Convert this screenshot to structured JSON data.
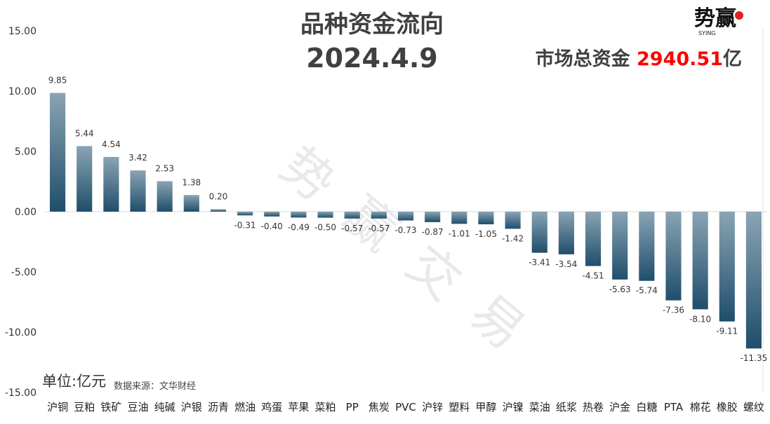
{
  "title": "品种资金流向",
  "date": "2024.4.9",
  "total": {
    "label": "市场总资金",
    "value": "2940.51",
    "unit": "亿"
  },
  "unit_label": "单位:亿元",
  "source_label": "数据来源：文华财经",
  "watermark": "势赢交易",
  "logo": {
    "text": "势赢",
    "sub": "SYING"
  },
  "colors": {
    "bar_light": "#8aa4b4",
    "bar_dark": "#1f4e6b",
    "total_value": "#ff0000",
    "title": "#404040"
  },
  "chart_data": {
    "type": "bar",
    "categories": [
      "沪铜",
      "豆粕",
      "铁矿",
      "豆油",
      "纯碱",
      "沪银",
      "沥青",
      "燃油",
      "鸡蛋",
      "苹果",
      "菜粕",
      "PP",
      "焦炭",
      "PVC",
      "沪锌",
      "塑料",
      "甲醇",
      "沪镍",
      "菜油",
      "纸浆",
      "热卷",
      "沪金",
      "白糖",
      "PTA",
      "棉花",
      "橡胶",
      "螺纹"
    ],
    "values": [
      9.85,
      5.44,
      4.54,
      3.42,
      2.53,
      1.38,
      0.2,
      -0.31,
      -0.4,
      -0.49,
      -0.5,
      -0.57,
      -0.57,
      -0.73,
      -0.87,
      -1.01,
      -1.05,
      -1.42,
      -3.41,
      -3.54,
      -4.51,
      -5.63,
      -5.74,
      -7.36,
      -8.1,
      -9.11,
      -11.35
    ],
    "value_labels": [
      "9.85",
      "5.44",
      "4.54",
      "3.42",
      "2.53",
      "1.38",
      "0.20",
      "-0.31",
      "-0.40",
      "-0.49",
      "-0.50",
      "-0.57",
      "-0.57",
      "-0.73",
      "-0.87",
      "-1.01",
      "-1.05",
      "-1.42",
      "-3.41",
      "-3.54",
      "-4.51",
      "-5.63",
      "-5.74",
      "-7.36",
      "-8.10",
      "-9.11",
      "-11.35"
    ],
    "yticks": [
      "15.00",
      "10.00",
      "5.00",
      "0.00",
      "-5.00",
      "-10.00",
      "-15.00"
    ],
    "ylim": [
      -15,
      15
    ],
    "grid": false,
    "xlabel": "",
    "ylabel": ""
  }
}
